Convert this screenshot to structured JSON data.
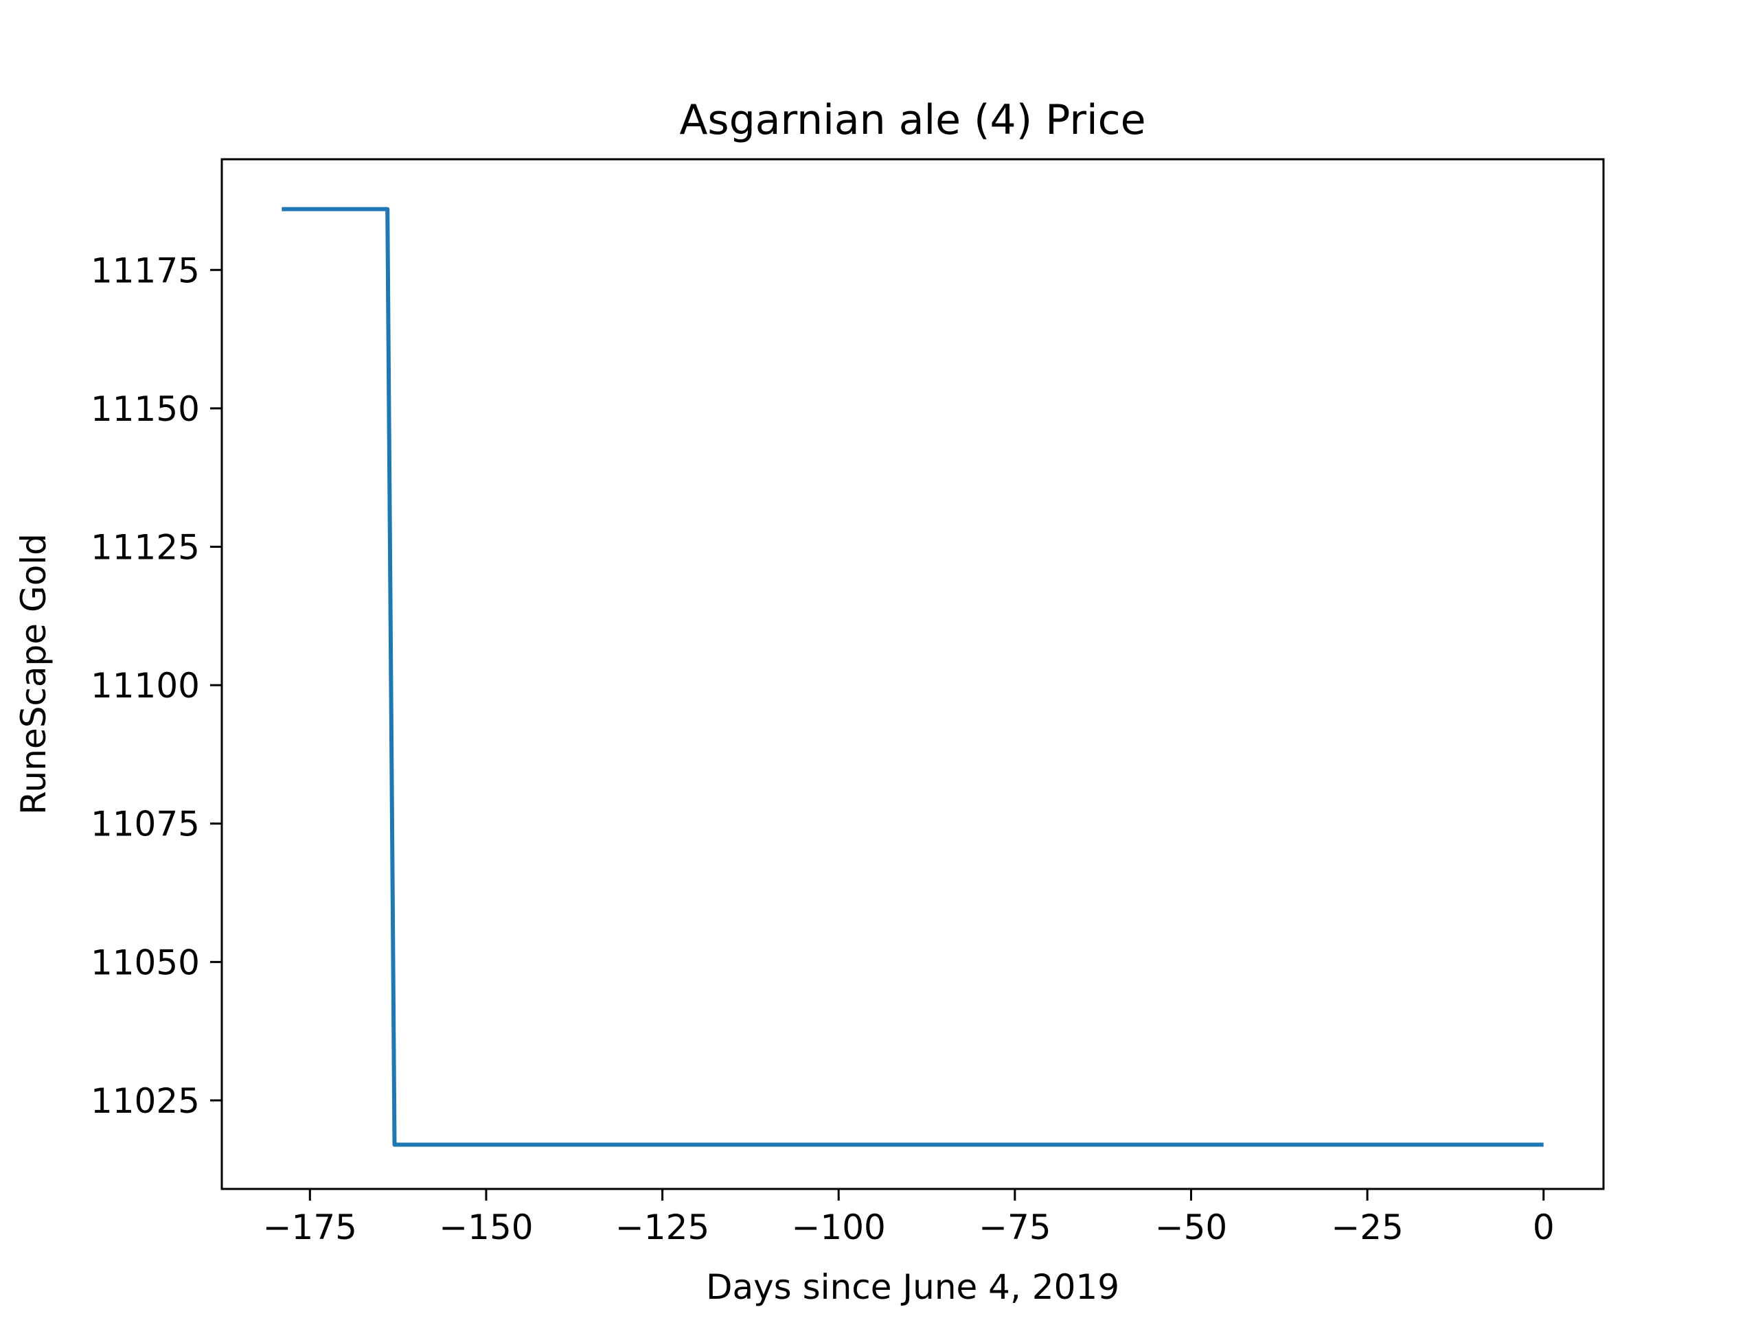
{
  "chart_data": {
    "type": "line",
    "title": "Asgarnian ale (4) Price",
    "xlabel": "Days since June 4, 2019",
    "ylabel": "RuneScape Gold",
    "xlim": [
      -187.5,
      8.5
    ],
    "ylim": [
      11009,
      11195
    ],
    "xticks": [
      -175,
      -150,
      -125,
      -100,
      -75,
      -50,
      -25,
      0
    ],
    "xtick_labels": [
      "−175",
      "−150",
      "−125",
      "−100",
      "−75",
      "−50",
      "−25",
      "0"
    ],
    "yticks": [
      11025,
      11050,
      11075,
      11100,
      11125,
      11150,
      11175
    ],
    "ytick_labels": [
      "11025",
      "11050",
      "11075",
      "11100",
      "11125",
      "11150",
      "11175"
    ],
    "grid": false,
    "colors": {
      "line": "#1f77b4"
    },
    "series": [
      {
        "x": [
          -179,
          -164,
          -163,
          0
        ],
        "y": [
          11186,
          11186,
          11017,
          11017
        ]
      }
    ]
  }
}
